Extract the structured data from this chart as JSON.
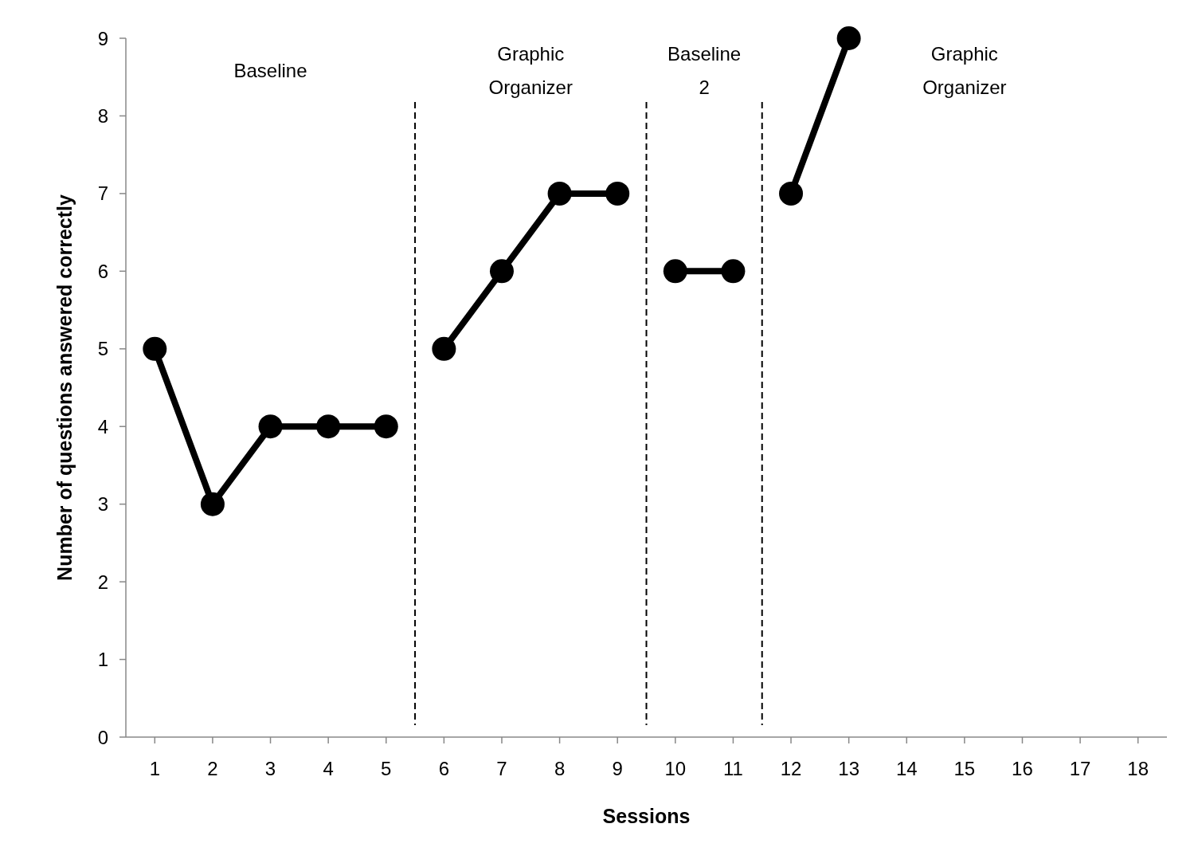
{
  "chart_data": {
    "type": "line",
    "xlabel": "Sessions",
    "ylabel": "Number of questions answered correctly",
    "x": [
      1,
      2,
      3,
      4,
      5,
      6,
      7,
      8,
      9,
      10,
      11,
      12,
      13
    ],
    "xlim": [
      0.5,
      18.5
    ],
    "xticks": [
      1,
      2,
      3,
      4,
      5,
      6,
      7,
      8,
      9,
      10,
      11,
      12,
      13,
      14,
      15,
      16,
      17,
      18
    ],
    "ylim": [
      0,
      9
    ],
    "yticks": [
      0,
      1,
      2,
      3,
      4,
      5,
      6,
      7,
      8,
      9
    ],
    "grid": false,
    "marker": "circle",
    "line_style": "solid",
    "series": [
      {
        "color": "#000000",
        "values": [
          5,
          3,
          4,
          4,
          4,
          null,
          null,
          null,
          null,
          null,
          null,
          null,
          null
        ]
      },
      {
        "color": "#000000",
        "values": [
          null,
          null,
          null,
          null,
          null,
          5,
          6,
          7,
          7,
          null,
          null,
          null,
          null
        ]
      },
      {
        "color": "#000000",
        "values": [
          null,
          null,
          null,
          null,
          null,
          null,
          null,
          null,
          null,
          6,
          6,
          null,
          null
        ]
      },
      {
        "color": "#000000",
        "values": [
          null,
          null,
          null,
          null,
          null,
          null,
          null,
          null,
          null,
          null,
          null,
          7,
          9
        ]
      }
    ],
    "ref_lines": [
      {
        "axis": "x",
        "value": 5.5,
        "line_style": "dashed",
        "color": "#000000"
      },
      {
        "axis": "x",
        "value": 9.5,
        "line_style": "dashed",
        "color": "#000000"
      },
      {
        "axis": "x",
        "value": 11.5,
        "line_style": "dashed",
        "color": "#000000"
      }
    ],
    "annotations": [
      "Baseline",
      "Graphic\nOrganizer",
      "Baseline\n2",
      "Graphic\nOrganizer"
    ]
  }
}
